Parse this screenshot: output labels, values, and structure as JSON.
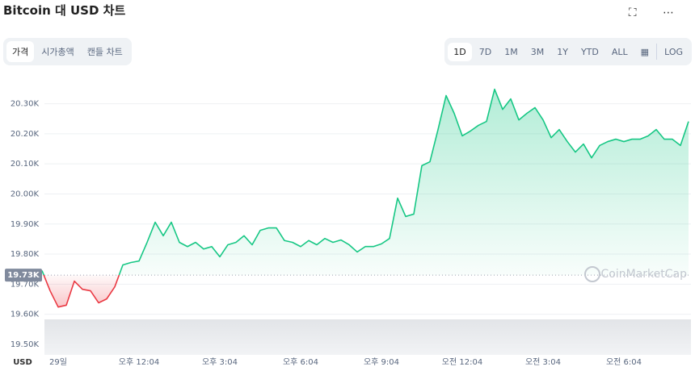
{
  "header": {
    "title": "Bitcoin 대 USD 차트"
  },
  "tabs": [
    "가격",
    "시가총액",
    "캔들 차트"
  ],
  "ranges": [
    "1D",
    "7D",
    "1M",
    "3M",
    "1Y",
    "YTD",
    "ALL"
  ],
  "log_button": "LOG",
  "watermark": "CoinMarketCap",
  "chart_data": {
    "type": "line",
    "xlabel": "USD",
    "categories": [
      null,
      null,
      "29일",
      null,
      null,
      null,
      null,
      null,
      null,
      null,
      null,
      null,
      "오후 12:04",
      null,
      null,
      null,
      null,
      null,
      null,
      null,
      null,
      null,
      "오후 3:04",
      null,
      null,
      null,
      null,
      null,
      null,
      null,
      null,
      null,
      "오후 6:04",
      null,
      null,
      null,
      null,
      null,
      null,
      null,
      null,
      null,
      "오후 9:04",
      null,
      null,
      null,
      null,
      null,
      null,
      null,
      null,
      null,
      "오전 12:04",
      null,
      null,
      null,
      null,
      null,
      null,
      null,
      null,
      null,
      "오전 3:04",
      null,
      null,
      null,
      null,
      null,
      null,
      null,
      null,
      null,
      "오전 6:04",
      null,
      null,
      null,
      null,
      null,
      null,
      null,
      null
    ],
    "series": [
      {
        "name": "Bitcoin",
        "color_up": "#16c784",
        "color_down": "#ea3943",
        "values": [
          19745,
          19678,
          19624,
          19630,
          19710,
          19683,
          19678,
          19638,
          19651,
          19691,
          19764,
          19772,
          19777,
          19839,
          19906,
          19861,
          19906,
          19839,
          19825,
          19839,
          19817,
          19825,
          19791,
          19831,
          19839,
          19861,
          19831,
          19879,
          19887,
          19887,
          19845,
          19839,
          19825,
          19845,
          19831,
          19852,
          19839,
          19847,
          19831,
          19807,
          19825,
          19825,
          19834,
          19852,
          19986,
          19925,
          19933,
          20094,
          20107,
          20214,
          20327,
          20268,
          20193,
          20209,
          20228,
          20241,
          20348,
          20281,
          20316,
          20246,
          20268,
          20287,
          20246,
          20187,
          20214,
          20174,
          20139,
          20166,
          20120,
          20161,
          20174,
          20182,
          20174,
          20182,
          20182,
          20193,
          20214,
          20182,
          20182,
          20161,
          20241
        ]
      }
    ],
    "reference": {
      "value": 19730,
      "label": "19.73K"
    },
    "ylim": [
      19465,
      20390
    ],
    "yticks": [
      {
        "value": 19500,
        "label": "19.50K"
      },
      {
        "value": 19600,
        "label": "19.60K"
      },
      {
        "value": 19700,
        "label": "19.70K"
      },
      {
        "value": 19800,
        "label": "19.80K"
      },
      {
        "value": 19900,
        "label": "19.90K"
      },
      {
        "value": 20000,
        "label": "20.00K"
      },
      {
        "value": 20100,
        "label": "20.10K"
      },
      {
        "value": 20200,
        "label": "20.20K"
      },
      {
        "value": 20300,
        "label": "20.30K"
      }
    ],
    "grid": true
  }
}
